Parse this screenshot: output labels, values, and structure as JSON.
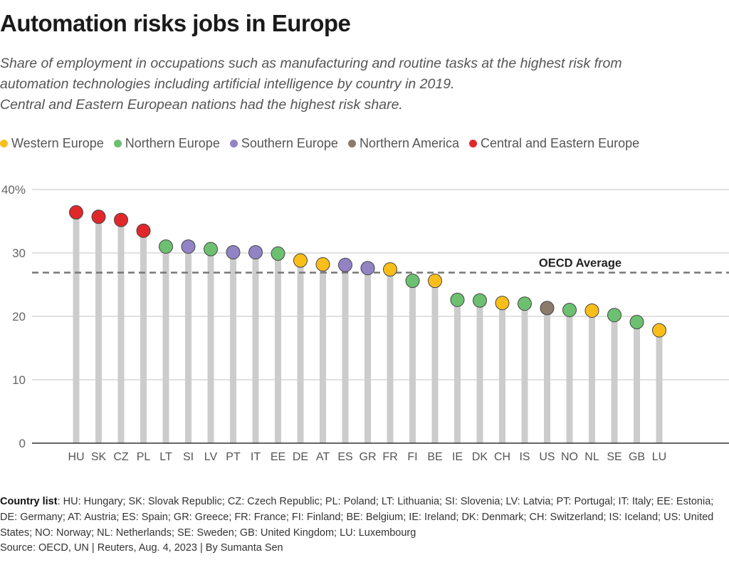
{
  "title": "Automation risks jobs in Europe",
  "subtitle_lines": [
    "Share of employment in occupations such as manufacturing and routine tasks at the highest risk from",
    "automation technologies including artificial intelligence by country in 2019.",
    "Central and Eastern European nations had the highest risk share."
  ],
  "legend": [
    {
      "label": "Western Europe",
      "color": "#f9be1a"
    },
    {
      "label": "Northern Europe",
      "color": "#6cc070"
    },
    {
      "label": "Southern Europe",
      "color": "#9283c4"
    },
    {
      "label": "Northern America",
      "color": "#8c7a6b"
    },
    {
      "label": "Central and Eastern Europe",
      "color": "#e0282a"
    }
  ],
  "footer": {
    "country_list_label": "Country list",
    "country_list": ": HU: Hungary; SK: Slovak Republic; CZ: Czech Republic; PL: Poland; LT: Lithuania; SI: Slovenia; LV: Latvia; PT: Portugal; IT: Italy; EE: Estonia; DE: Germany; AT: Austria; ES: Spain; GR: Greece; FR: France; FI: Finland; BE: Belgium; IE: Ireland; DK: Denmark; CH: Switzerland; IS: Iceland; US: United States; NO: Norway; NL: Netherlands; SE: Sweden; GB: United Kingdom; LU: Luxembourg",
    "source": "Source: OECD, UN | Reuters, Aug. 4, 2023 | By Sumanta Sen"
  },
  "chart_data": {
    "type": "scatter",
    "subtype": "lollipop",
    "title": "Automation risks jobs in Europe",
    "xlabel": "",
    "ylabel": "",
    "ylim": [
      0,
      40
    ],
    "yticks": [
      0,
      10,
      20,
      30,
      40
    ],
    "ytick_labels": [
      "0",
      "10",
      "20",
      "30",
      "40%"
    ],
    "grid": true,
    "legend_position": "top-left",
    "categories": [
      "HU",
      "SK",
      "CZ",
      "PL",
      "LT",
      "SI",
      "LV",
      "PT",
      "IT",
      "EE",
      "DE",
      "AT",
      "ES",
      "GR",
      "FR",
      "FI",
      "BE",
      "IE",
      "DK",
      "CH",
      "IS",
      "US",
      "NO",
      "NL",
      "SE",
      "GB",
      "LU"
    ],
    "values": [
      36.4,
      35.7,
      35.2,
      33.5,
      31.0,
      31.0,
      30.6,
      30.1,
      30.1,
      29.9,
      28.8,
      28.2,
      28.1,
      27.6,
      27.4,
      25.6,
      25.6,
      22.6,
      22.5,
      22.1,
      22.0,
      21.3,
      21.0,
      20.9,
      20.2,
      19.1,
      17.8
    ],
    "regions": [
      "Central and Eastern Europe",
      "Central and Eastern Europe",
      "Central and Eastern Europe",
      "Central and Eastern Europe",
      "Northern Europe",
      "Southern Europe",
      "Northern Europe",
      "Southern Europe",
      "Southern Europe",
      "Northern Europe",
      "Western Europe",
      "Western Europe",
      "Southern Europe",
      "Southern Europe",
      "Western Europe",
      "Northern Europe",
      "Western Europe",
      "Northern Europe",
      "Northern Europe",
      "Western Europe",
      "Northern Europe",
      "Northern America",
      "Northern Europe",
      "Western Europe",
      "Northern Europe",
      "Northern Europe",
      "Western Europe"
    ],
    "reference_line": {
      "label": "OECD Average",
      "value": 26.9
    }
  }
}
